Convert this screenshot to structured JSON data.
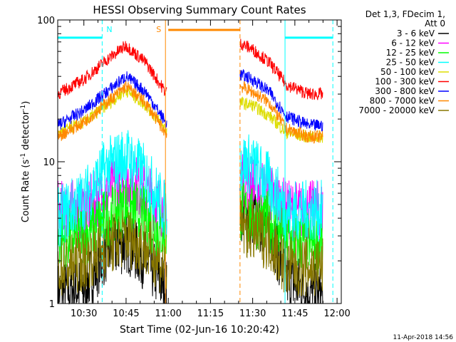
{
  "chart_data": {
    "type": "line",
    "title": "HESSI Observing Summary Count Rates",
    "xlabel": "Start Time (02-Jun-16 10:20:42)",
    "ylabel_main": "Count Rate (s",
    "ylabel_sup1": "-1",
    "ylabel_mid": " detector",
    "ylabel_sup2": "-1",
    "ylabel_end": ")",
    "ylabel": "Count Rate (s^-1 detector^-1)",
    "yscale": "log",
    "ylim": [
      1,
      100
    ],
    "xlim": [
      "10:20:42",
      "12:01:30"
    ],
    "x_ticks": [
      "10:30",
      "10:45",
      "11:00",
      "11:15",
      "11:30",
      "11:45",
      "12:00"
    ],
    "y_ticks": [
      "1",
      "10",
      "100"
    ],
    "legend_header": [
      "Det 1,3, FDecim 1,",
      "Att 0"
    ],
    "legend_position": "top-right, outside plot",
    "series": [
      {
        "name": "3 - 6 keV",
        "color": "#000000",
        "x": [
          "10:20:42",
          "10:30",
          "10:38",
          "10:45",
          "10:52",
          "10:59",
          "11:26",
          "11:30",
          "11:36",
          "11:42",
          "11:50",
          "11:55"
        ],
        "y": [
          1.2,
          1.3,
          2.3,
          2.7,
          2.0,
          1.3,
          4.5,
          4.0,
          3.5,
          1.5,
          1.2,
          1.1
        ]
      },
      {
        "name": "6 - 12 keV",
        "color": "#ff00ff",
        "x": [
          "10:20:42",
          "10:30",
          "10:38",
          "10:45",
          "10:52",
          "10:59",
          "11:26",
          "11:30",
          "11:36",
          "11:42",
          "11:50",
          "11:55"
        ],
        "y": [
          4.5,
          4.6,
          6.0,
          8.0,
          6.0,
          4.5,
          8.0,
          7.0,
          6.0,
          4.5,
          4.5,
          4.5
        ]
      },
      {
        "name": "12 - 25 keV",
        "color": "#00ff00",
        "x": [
          "10:20:42",
          "10:30",
          "10:38",
          "10:45",
          "10:52",
          "10:59",
          "11:26",
          "11:30",
          "11:36",
          "11:42",
          "11:50",
          "11:55"
        ],
        "y": [
          2.8,
          3.0,
          4.0,
          5.0,
          4.0,
          3.0,
          4.5,
          4.0,
          3.8,
          2.8,
          2.7,
          2.6
        ]
      },
      {
        "name": "25 - 50 keV",
        "color": "#00ffff",
        "x": [
          "10:20:42",
          "10:30",
          "10:38",
          "10:45",
          "10:52",
          "10:59",
          "11:26",
          "11:30",
          "11:36",
          "11:42",
          "11:50",
          "11:55"
        ],
        "y": [
          4.0,
          5.5,
          9.0,
          11.0,
          8.0,
          4.5,
          10.0,
          9.5,
          7.0,
          4.5,
          4.5,
          4.5
        ]
      },
      {
        "name": "50 - 100 keV",
        "color": "#dddd00",
        "x": [
          "10:20:42",
          "10:30",
          "10:38",
          "10:45",
          "10:52",
          "10:59",
          "11:26",
          "11:30",
          "11:36",
          "11:42",
          "11:50",
          "11:55"
        ],
        "y": [
          16,
          19,
          25,
          32,
          25,
          17,
          26,
          25,
          21,
          16,
          15,
          15
        ]
      },
      {
        "name": "100 - 300 keV",
        "color": "#ff0000",
        "x": [
          "10:20:42",
          "10:30",
          "10:38",
          "10:45",
          "10:52",
          "10:59",
          "11:26",
          "11:30",
          "11:36",
          "11:42",
          "11:50",
          "11:55"
        ],
        "y": [
          30,
          38,
          52,
          66,
          50,
          31,
          68,
          62,
          50,
          35,
          30,
          30
        ]
      },
      {
        "name": "300 - 800 keV",
        "color": "#0000ff",
        "x": [
          "10:20:42",
          "10:30",
          "10:38",
          "10:45",
          "10:52",
          "10:59",
          "11:26",
          "11:30",
          "11:36",
          "11:42",
          "11:50",
          "11:55"
        ],
        "y": [
          18,
          23,
          31,
          40,
          31,
          19,
          41,
          38,
          31,
          21,
          18,
          18
        ]
      },
      {
        "name": "800 - 7000 keV",
        "color": "#ff8800",
        "x": [
          "10:20:42",
          "10:30",
          "10:38",
          "10:45",
          "10:52",
          "10:59",
          "11:26",
          "11:30",
          "11:36",
          "11:42",
          "11:50",
          "11:55"
        ],
        "y": [
          15,
          19,
          26,
          34,
          26,
          16,
          34,
          31,
          26,
          17,
          15,
          15
        ]
      },
      {
        "name": "7000 - 20000 keV",
        "color": "#887700",
        "x": [
          "10:20:42",
          "10:30",
          "10:38",
          "10:45",
          "10:52",
          "10:59",
          "11:26",
          "11:30",
          "11:36",
          "11:42",
          "11:50",
          "11:55"
        ],
        "y": [
          1.8,
          2.0,
          2.5,
          3.0,
          2.5,
          1.8,
          3.5,
          3.2,
          2.8,
          1.8,
          1.8,
          1.8
        ]
      }
    ],
    "annotations": [
      {
        "text": "N",
        "color": "#00ffff",
        "x": "10:36:30"
      },
      {
        "text": "S",
        "color": "#ff8800",
        "x": "10:59:00"
      }
    ],
    "flag_bars": [
      {
        "name": "night",
        "color": "#00ffff",
        "x0": "10:20:42",
        "x1": "10:36:30",
        "y": 75
      },
      {
        "name": "saa",
        "color": "#ff8800",
        "x0": "11:00:00",
        "x1": "11:25:30",
        "y": 85
      },
      {
        "name": "night2",
        "color": "#00ffff",
        "x0": "11:41:30",
        "x1": "11:58:30",
        "y": 75
      }
    ],
    "vlines": [
      {
        "x": "10:36:30",
        "color": "#00ffff",
        "style": "dashed"
      },
      {
        "x": "10:59:00",
        "color": "#ff8800",
        "style": "solid"
      },
      {
        "x": "11:25:30",
        "color": "#ff8800",
        "style": "dashed"
      },
      {
        "x": "11:41:30",
        "color": "#00ffff",
        "style": "solid"
      },
      {
        "x": "11:58:30",
        "color": "#00ffff",
        "style": "dashed"
      }
    ],
    "footer_date": "11-Apr-2018 14:56"
  }
}
